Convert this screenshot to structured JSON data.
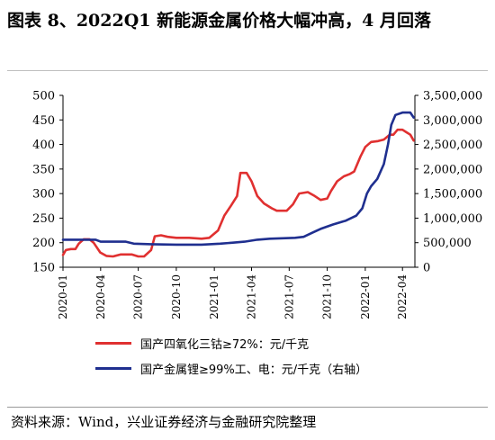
{
  "title": "图表 8、2022Q1 新能源金属价格大幅冲高，4 月回落",
  "source": "资料来源：Wind，兴业证券经济与金融研究院整理",
  "colors": {
    "series_left": "#e03030",
    "series_right": "#1f2f8f",
    "axis": "#000000"
  },
  "chart_data": {
    "type": "line",
    "title": "",
    "xlabel": "",
    "ylabel": "",
    "x_ticks": [
      "2020-01",
      "2020-04",
      "2020-07",
      "2020-10",
      "2021-01",
      "2021-04",
      "2021-07",
      "2021-10",
      "2022-01",
      "2022-04"
    ],
    "y_left": {
      "lim": [
        150,
        500
      ],
      "ticks": [
        "150",
        "200",
        "250",
        "300",
        "350",
        "400",
        "450",
        "500"
      ]
    },
    "y_right": {
      "lim": [
        0,
        3500000
      ],
      "ticks": [
        "0",
        "500,000",
        "1,000,000",
        "1,500,000",
        "2,000,000",
        "2,500,000",
        "3,000,000",
        "3,500,000"
      ]
    },
    "x_range": [
      "2020-01-01",
      "2022-05-01"
    ],
    "series": [
      {
        "name": "国产四氧化三钴≥72%：元/千克",
        "axis": "left",
        "points": [
          [
            "2020-01-01",
            175
          ],
          [
            "2020-01-08",
            185
          ],
          [
            "2020-01-20",
            187
          ],
          [
            "2020-01-31",
            187
          ],
          [
            "2020-02-08",
            198
          ],
          [
            "2020-02-20",
            207
          ],
          [
            "2020-03-05",
            207
          ],
          [
            "2020-03-15",
            200
          ],
          [
            "2020-03-31",
            180
          ],
          [
            "2020-04-15",
            173
          ],
          [
            "2020-05-01",
            172
          ],
          [
            "2020-05-20",
            176
          ],
          [
            "2020-06-15",
            176
          ],
          [
            "2020-07-01",
            172
          ],
          [
            "2020-07-15",
            172
          ],
          [
            "2020-08-01",
            185
          ],
          [
            "2020-08-10",
            213
          ],
          [
            "2020-08-25",
            215
          ],
          [
            "2020-09-10",
            212
          ],
          [
            "2020-10-01",
            210
          ],
          [
            "2020-11-01",
            210
          ],
          [
            "2020-12-01",
            208
          ],
          [
            "2020-12-20",
            210
          ],
          [
            "2021-01-10",
            225
          ],
          [
            "2021-01-25",
            255
          ],
          [
            "2021-02-10",
            275
          ],
          [
            "2021-02-25",
            295
          ],
          [
            "2021-03-05",
            342
          ],
          [
            "2021-03-20",
            342
          ],
          [
            "2021-04-01",
            325
          ],
          [
            "2021-04-15",
            295
          ],
          [
            "2021-05-01",
            280
          ],
          [
            "2021-05-20",
            270
          ],
          [
            "2021-06-01",
            265
          ],
          [
            "2021-06-25",
            265
          ],
          [
            "2021-07-10",
            278
          ],
          [
            "2021-07-25",
            300
          ],
          [
            "2021-08-15",
            303
          ],
          [
            "2021-09-01",
            295
          ],
          [
            "2021-09-15",
            287
          ],
          [
            "2021-10-01",
            290
          ],
          [
            "2021-10-10",
            305
          ],
          [
            "2021-10-25",
            325
          ],
          [
            "2021-11-10",
            335
          ],
          [
            "2021-11-25",
            340
          ],
          [
            "2021-12-05",
            345
          ],
          [
            "2021-12-20",
            375
          ],
          [
            "2022-01-01",
            395
          ],
          [
            "2022-01-15",
            405
          ],
          [
            "2022-02-01",
            407
          ],
          [
            "2022-02-15",
            410
          ],
          [
            "2022-03-01",
            420
          ],
          [
            "2022-03-10",
            420
          ],
          [
            "2022-03-20",
            430
          ],
          [
            "2022-04-01",
            430
          ],
          [
            "2022-04-10",
            425
          ],
          [
            "2022-04-20",
            420
          ],
          [
            "2022-04-28",
            408
          ]
        ]
      },
      {
        "name": "国产金属锂≥99%工、电：元/千克（右轴）",
        "axis": "right",
        "points": [
          [
            "2020-01-01",
            560000
          ],
          [
            "2020-02-01",
            560000
          ],
          [
            "2020-03-01",
            560000
          ],
          [
            "2020-03-20",
            560000
          ],
          [
            "2020-04-01",
            520000
          ],
          [
            "2020-05-01",
            520000
          ],
          [
            "2020-06-01",
            520000
          ],
          [
            "2020-06-20",
            480000
          ],
          [
            "2020-08-01",
            470000
          ],
          [
            "2020-10-01",
            460000
          ],
          [
            "2020-12-01",
            460000
          ],
          [
            "2021-01-15",
            480000
          ],
          [
            "2021-02-15",
            500000
          ],
          [
            "2021-03-15",
            520000
          ],
          [
            "2021-04-15",
            560000
          ],
          [
            "2021-05-15",
            580000
          ],
          [
            "2021-06-15",
            590000
          ],
          [
            "2021-07-15",
            600000
          ],
          [
            "2021-08-05",
            620000
          ],
          [
            "2021-08-25",
            700000
          ],
          [
            "2021-09-15",
            780000
          ],
          [
            "2021-10-15",
            870000
          ],
          [
            "2021-11-15",
            950000
          ],
          [
            "2021-12-10",
            1050000
          ],
          [
            "2021-12-25",
            1200000
          ],
          [
            "2022-01-05",
            1500000
          ],
          [
            "2022-01-15",
            1650000
          ],
          [
            "2022-01-30",
            1800000
          ],
          [
            "2022-02-15",
            2100000
          ],
          [
            "2022-02-25",
            2500000
          ],
          [
            "2022-03-05",
            2900000
          ],
          [
            "2022-03-15",
            3100000
          ],
          [
            "2022-04-01",
            3150000
          ],
          [
            "2022-04-20",
            3150000
          ],
          [
            "2022-04-28",
            3050000
          ]
        ]
      }
    ],
    "legend_position": "bottom",
    "grid": false
  }
}
